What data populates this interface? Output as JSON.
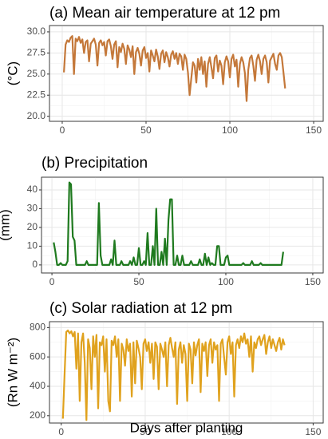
{
  "chart_data": [
    {
      "type": "line",
      "title": "(a) Mean air temperature at 12 pm",
      "y_label": "(°C)",
      "color": "#c4783a",
      "x": [
        1,
        2,
        3,
        4,
        5,
        6,
        7,
        8,
        9,
        10,
        11,
        12,
        13,
        14,
        15,
        16,
        17,
        18,
        19,
        20,
        21,
        22,
        23,
        24,
        25,
        26,
        27,
        28,
        29,
        30,
        31,
        32,
        33,
        34,
        35,
        36,
        37,
        38,
        39,
        40,
        41,
        42,
        43,
        44,
        45,
        46,
        47,
        48,
        49,
        50,
        51,
        52,
        53,
        54,
        55,
        56,
        57,
        58,
        59,
        60,
        61,
        62,
        63,
        64,
        65,
        66,
        67,
        68,
        69,
        70,
        71,
        72,
        73,
        74,
        75,
        76,
        77,
        78,
        79,
        80,
        81,
        82,
        83,
        84,
        85,
        86,
        87,
        88,
        89,
        90,
        91,
        92,
        93,
        94,
        95,
        96,
        97,
        98,
        99,
        100,
        101,
        102,
        103,
        104,
        105,
        106,
        107,
        108,
        109,
        110,
        111,
        112,
        113,
        114,
        115,
        116,
        117,
        118,
        119,
        120,
        121,
        122,
        123,
        124,
        125,
        126,
        127,
        128,
        129,
        130,
        131,
        132,
        133
      ],
      "values": [
        25.2,
        28.5,
        29.0,
        28.8,
        29.3,
        29.5,
        25.0,
        29.2,
        28.9,
        29.4,
        28.7,
        29.1,
        27.5,
        28.8,
        29.0,
        26.5,
        28.6,
        28.9,
        29.2,
        28.5,
        26.0,
        28.7,
        29.0,
        28.4,
        28.8,
        27.2,
        28.9,
        29.1,
        28.3,
        26.8,
        28.5,
        28.9,
        25.8,
        28.2,
        27.6,
        28.6,
        28.0,
        26.2,
        28.4,
        27.9,
        27.0,
        28.3,
        25.0,
        27.6,
        28.1,
        27.4,
        26.0,
        27.8,
        28.2,
        26.9,
        27.5,
        25.3,
        27.8,
        27.2,
        26.5,
        27.9,
        27.1,
        25.6,
        27.4,
        27.8,
        26.4,
        27.6,
        27.0,
        25.9,
        27.3,
        27.7,
        26.8,
        27.5,
        26.2,
        27.4,
        27.1,
        25.5,
        27.3,
        26.8,
        25.2,
        22.5,
        24.5,
        26.4,
        26.0,
        24.0,
        26.8,
        25.5,
        27.0,
        25.0,
        26.5,
        23.5,
        26.2,
        27.0,
        25.8,
        24.5,
        26.9,
        27.2,
        25.3,
        26.6,
        26.0,
        23.8,
        26.4,
        27.1,
        26.5,
        24.6,
        26.8,
        27.3,
        25.9,
        26.7,
        23.5,
        26.2,
        27.0,
        26.4,
        25.1,
        21.8,
        25.5,
        26.9,
        27.2,
        26.0,
        24.2,
        26.7,
        27.3,
        26.5,
        25.0,
        26.8,
        27.2,
        26.4,
        24.0,
        26.6,
        27.0,
        27.4,
        26.2,
        25.5,
        27.2,
        27.5,
        27.0,
        25.2,
        23.3
      ],
      "xlim": [
        -7.6,
        155.7
      ],
      "ylim": [
        19.4,
        30.75
      ],
      "xticks": [
        0,
        50,
        100,
        150
      ],
      "yticks": [
        {
          "value": 20,
          "label": "20.0"
        },
        {
          "value": 22.5,
          "label": "22.5"
        },
        {
          "value": 25,
          "label": "25.0"
        },
        {
          "value": 27.5,
          "label": "27.5"
        },
        {
          "value": 30,
          "label": "30.0"
        }
      ],
      "grid": true
    },
    {
      "type": "line",
      "title": "(b) Precipitation",
      "y_label": "(mm)",
      "color": "#1f7a1f",
      "x": [
        1,
        2,
        3,
        4,
        5,
        6,
        7,
        8,
        9,
        10,
        11,
        12,
        13,
        14,
        15,
        16,
        17,
        18,
        19,
        20,
        21,
        22,
        23,
        24,
        25,
        26,
        27,
        28,
        29,
        30,
        31,
        32,
        33,
        34,
        35,
        36,
        37,
        38,
        39,
        40,
        41,
        42,
        43,
        44,
        45,
        46,
        47,
        48,
        49,
        50,
        51,
        52,
        53,
        54,
        55,
        56,
        57,
        58,
        59,
        60,
        61,
        62,
        63,
        64,
        65,
        66,
        67,
        68,
        69,
        70,
        71,
        72,
        73,
        74,
        75,
        76,
        77,
        78,
        79,
        80,
        81,
        82,
        83,
        84,
        85,
        86,
        87,
        88,
        89,
        90,
        91,
        92,
        93,
        94,
        95,
        96,
        97,
        98,
        99,
        100,
        101,
        102,
        103,
        104,
        105,
        106,
        107,
        108,
        109,
        110,
        111,
        112,
        113,
        114,
        115,
        116,
        117,
        118,
        119,
        120,
        121,
        122,
        123,
        124,
        125,
        126,
        127,
        128,
        129,
        130,
        131,
        132,
        133
      ],
      "values": [
        12,
        7,
        0,
        0,
        1,
        0,
        0,
        0,
        2,
        44,
        43,
        15,
        13,
        0,
        0,
        0,
        0,
        0,
        0,
        2,
        0,
        0,
        0,
        0,
        0,
        0,
        33,
        5,
        0,
        0,
        0,
        0,
        0,
        3,
        0,
        13,
        0,
        0,
        0,
        2,
        0,
        0,
        0,
        0,
        2,
        0,
        4,
        0,
        0,
        9,
        0,
        0,
        2,
        0,
        17,
        0,
        0,
        10,
        0,
        30,
        0,
        0,
        7,
        0,
        14,
        0,
        24,
        35,
        35,
        0,
        0,
        5,
        0,
        0,
        5,
        0,
        0,
        0,
        0,
        2,
        0,
        0,
        0,
        0,
        3,
        0,
        0,
        6,
        0,
        4,
        0,
        1,
        0,
        0,
        10,
        10,
        0,
        0,
        0,
        4,
        5,
        0,
        0,
        0,
        0,
        0,
        0,
        0,
        0,
        1,
        0,
        0,
        0,
        0,
        2,
        0,
        0,
        0,
        0,
        1,
        0,
        0,
        0,
        0,
        0,
        0,
        0,
        0,
        0,
        0,
        0,
        0,
        7
      ],
      "xlim": [
        -6,
        156
      ],
      "ylim": [
        -4.3,
        46.8
      ],
      "xticks": [
        0,
        50,
        100,
        150
      ],
      "yticks": [
        0,
        10,
        20,
        30,
        40
      ],
      "grid": true
    },
    {
      "type": "line",
      "title": "(c) Solar radiation at 12 pm",
      "y_label": "(Rn W m⁻²)",
      "x_label": "Days after planting",
      "color": "#e0a21e",
      "x": [
        1,
        2,
        3,
        4,
        5,
        6,
        7,
        8,
        9,
        10,
        11,
        12,
        13,
        14,
        15,
        16,
        17,
        18,
        19,
        20,
        21,
        22,
        23,
        24,
        25,
        26,
        27,
        28,
        29,
        30,
        31,
        32,
        33,
        34,
        35,
        36,
        37,
        38,
        39,
        40,
        41,
        42,
        43,
        44,
        45,
        46,
        47,
        48,
        49,
        50,
        51,
        52,
        53,
        54,
        55,
        56,
        57,
        58,
        59,
        60,
        61,
        62,
        63,
        64,
        65,
        66,
        67,
        68,
        69,
        70,
        71,
        72,
        73,
        74,
        75,
        76,
        77,
        78,
        79,
        80,
        81,
        82,
        83,
        84,
        85,
        86,
        87,
        88,
        89,
        90,
        91,
        92,
        93,
        94,
        95,
        96,
        97,
        98,
        99,
        100,
        101,
        102,
        103,
        104,
        105,
        106,
        107,
        108,
        109,
        110,
        111,
        112,
        113,
        114,
        115,
        116,
        117,
        118,
        119,
        120,
        121,
        122,
        123,
        124,
        125,
        126,
        127,
        128,
        129,
        130,
        131,
        132,
        133
      ],
      "values": [
        180,
        480,
        770,
        780,
        760,
        775,
        740,
        770,
        520,
        760,
        300,
        700,
        760,
        560,
        170,
        720,
        660,
        380,
        740,
        600,
        750,
        250,
        700,
        680,
        740,
        500,
        720,
        300,
        230,
        710,
        680,
        740,
        600,
        720,
        300,
        690,
        650,
        540,
        720,
        640,
        690,
        330,
        700,
        420,
        710,
        660,
        600,
        380,
        690,
        720,
        640,
        700,
        560,
        690,
        450,
        700,
        670,
        380,
        690,
        650,
        600,
        700,
        400,
        680,
        730,
        660,
        600,
        700,
        280,
        650,
        700,
        560,
        680,
        620,
        300,
        690,
        650,
        420,
        700,
        610,
        680,
        720,
        360,
        690,
        640,
        700,
        470,
        680,
        720,
        560,
        700,
        650,
        680,
        300,
        690,
        720,
        600,
        480,
        700,
        740,
        620,
        700,
        330,
        680,
        720,
        660,
        740,
        700,
        760,
        690,
        720,
        600,
        740,
        500,
        700,
        660,
        720,
        740,
        680,
        720,
        750,
        620,
        700,
        740,
        660,
        720,
        680,
        640,
        700,
        730,
        650,
        720,
        680
      ],
      "xlim": [
        -7,
        156
      ],
      "ylim": [
        150,
        840
      ],
      "xticks": [
        0,
        50,
        100,
        150
      ],
      "yticks": [
        200,
        400,
        600,
        800
      ],
      "grid": true
    }
  ]
}
